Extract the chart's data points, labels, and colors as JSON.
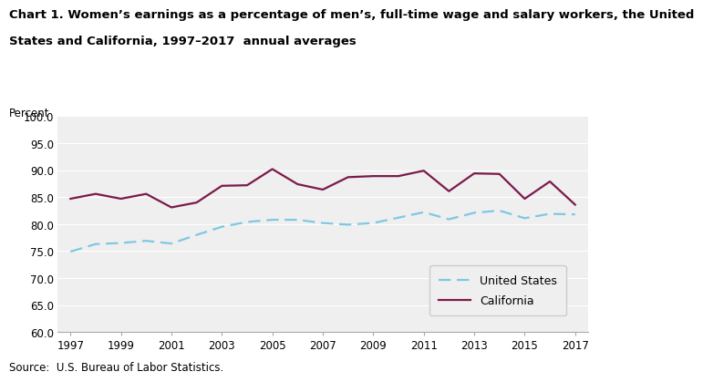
{
  "title_line1": "Chart 1. Women’s earnings as a percentage of men’s, full-time wage and salary workers, the United",
  "title_line2": "States and California, 1997–2017  annual averages",
  "ylabel": "Percent",
  "source": "Source:  U.S. Bureau of Labor Statistics.",
  "years": [
    1997,
    1998,
    1999,
    2000,
    2001,
    2002,
    2003,
    2004,
    2005,
    2006,
    2007,
    2008,
    2009,
    2010,
    2011,
    2012,
    2013,
    2014,
    2015,
    2016,
    2017
  ],
  "us_data": [
    74.9,
    76.3,
    76.5,
    76.9,
    76.4,
    78.0,
    79.5,
    80.4,
    80.8,
    80.8,
    80.2,
    79.9,
    80.2,
    81.2,
    82.2,
    80.9,
    82.1,
    82.5,
    81.1,
    81.9,
    81.8
  ],
  "ca_data": [
    84.7,
    85.6,
    84.7,
    85.6,
    83.1,
    84.0,
    87.1,
    87.2,
    90.2,
    87.4,
    86.4,
    88.7,
    88.9,
    88.9,
    89.9,
    86.1,
    89.4,
    89.3,
    84.7,
    87.9,
    83.6
  ],
  "us_color": "#7ec8e3",
  "ca_color": "#7b1a4b",
  "ylim": [
    60.0,
    100.0
  ],
  "yticks": [
    60.0,
    65.0,
    70.0,
    75.0,
    80.0,
    85.0,
    90.0,
    95.0,
    100.0
  ],
  "xtick_years": [
    1997,
    1999,
    2001,
    2003,
    2005,
    2007,
    2009,
    2011,
    2013,
    2015,
    2017
  ],
  "background_color": "#ffffff",
  "plot_bg_color": "#efefef",
  "grid_color": "#ffffff",
  "title_fontsize": 9.5,
  "tick_fontsize": 8.5,
  "legend_label_us": "United States",
  "legend_label_ca": "California"
}
